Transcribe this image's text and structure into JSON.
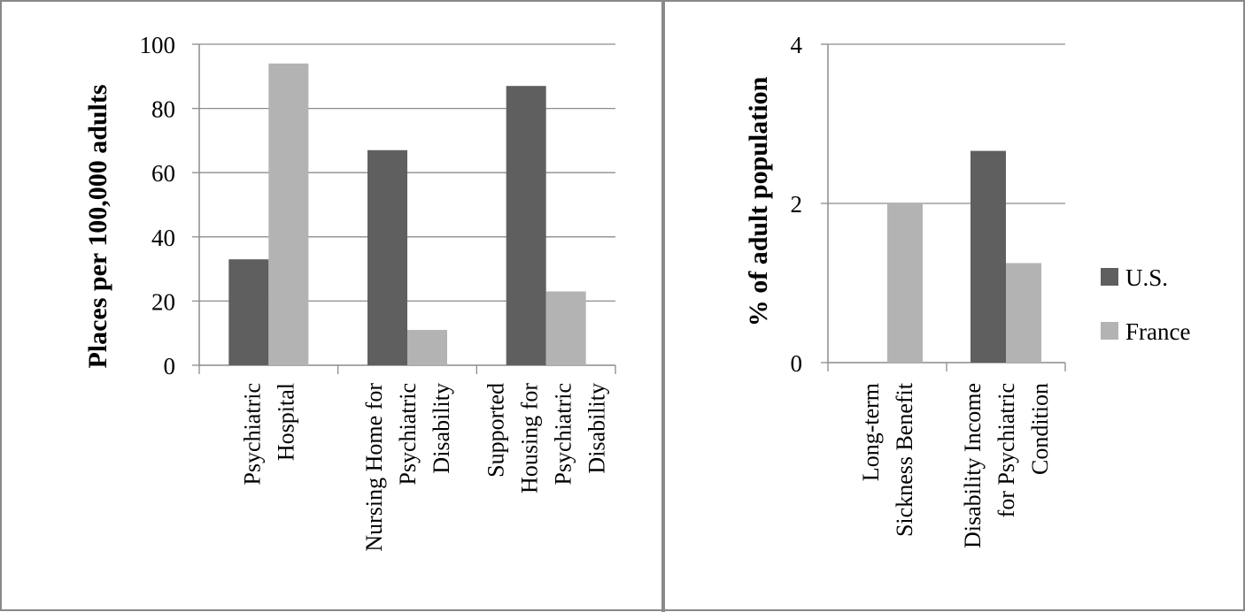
{
  "chart_data": [
    {
      "type": "bar",
      "categories": [
        [
          "Psychiatric",
          "Hospital"
        ],
        [
          "Nursing Home for",
          "Psychiatric",
          "Disability"
        ],
        [
          "Supported",
          "Housing for",
          "Psychiatric",
          "Disability"
        ]
      ],
      "series": [
        {
          "name": "U.S.",
          "color": "#5f5f5f",
          "values": [
            33,
            67,
            87
          ]
        },
        {
          "name": "France",
          "color": "#b3b3b3",
          "values": [
            94,
            11,
            23
          ]
        }
      ],
      "ylabel": "Places per 100,000 adults",
      "yticks": [
        "0",
        "20",
        "40",
        "60",
        "80",
        "100"
      ],
      "ylim": [
        0,
        100
      ],
      "grid": true
    },
    {
      "type": "bar",
      "categories": [
        [
          "Long-term",
          "Sickness Benefit"
        ],
        [
          "Disability Income",
          "for Psychiatric",
          "Condition"
        ]
      ],
      "series": [
        {
          "name": "U.S.",
          "color": "#5f5f5f",
          "values": [
            0,
            2.66
          ]
        },
        {
          "name": "France",
          "color": "#b3b3b3",
          "values": [
            2.0,
            1.25
          ]
        }
      ],
      "ylabel": "% of adult population",
      "yticks": [
        "0",
        "2",
        "4"
      ],
      "ylim": [
        0,
        4
      ],
      "grid": true,
      "legend": "right"
    }
  ],
  "legend": [
    {
      "label": "U.S.",
      "color": "#5f5f5f"
    },
    {
      "label": "France",
      "color": "#b3b3b3"
    }
  ]
}
